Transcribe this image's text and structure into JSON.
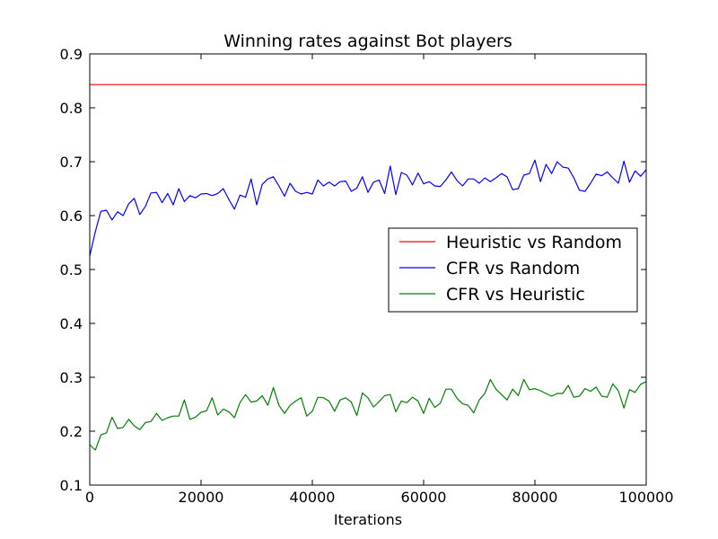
{
  "chart_data": {
    "type": "line",
    "title": "Winning rates against Bot players",
    "xlabel": "Iterations",
    "ylabel": "",
    "xlim": [
      0,
      100000
    ],
    "ylim": [
      0.1,
      0.9
    ],
    "x_ticks": [
      0,
      20000,
      40000,
      60000,
      80000,
      100000
    ],
    "x_tick_labels": [
      "0",
      "20000",
      "40000",
      "60000",
      "80000",
      "100000"
    ],
    "y_ticks": [
      0.1,
      0.2,
      0.3,
      0.4,
      0.5,
      0.6,
      0.7,
      0.8,
      0.9
    ],
    "y_tick_labels": [
      "0.1",
      "0.2",
      "0.3",
      "0.4",
      "0.5",
      "0.6",
      "0.7",
      "0.8",
      "0.9"
    ],
    "grid": false,
    "legend_position": "center-right",
    "series": [
      {
        "name": "Heuristic vs Random",
        "color": "#ff0000",
        "x": [
          0,
          100000
        ],
        "y": [
          0.843,
          0.843
        ]
      },
      {
        "name": "CFR vs Random",
        "color": "#0000ff",
        "x": [
          0,
          1000,
          2000,
          3000,
          4000,
          5000,
          6000,
          7000,
          8000,
          9000,
          10000,
          11000,
          12000,
          13000,
          14000,
          15000,
          16000,
          17000,
          18000,
          19000,
          20000,
          21000,
          22000,
          23000,
          24000,
          25000,
          26000,
          27000,
          28000,
          29000,
          30000,
          31000,
          32000,
          33000,
          34000,
          35000,
          36000,
          37000,
          38000,
          39000,
          40000,
          41000,
          42000,
          43000,
          44000,
          45000,
          46000,
          47000,
          48000,
          49000,
          50000,
          51000,
          52000,
          53000,
          54000,
          55000,
          56000,
          57000,
          58000,
          59000,
          60000,
          61000,
          62000,
          63000,
          64000,
          65000,
          66000,
          67000,
          68000,
          69000,
          70000,
          71000,
          72000,
          73000,
          74000,
          75000,
          76000,
          77000,
          78000,
          79000,
          80000,
          81000,
          82000,
          83000,
          84000,
          85000,
          86000,
          87000,
          88000,
          89000,
          90000,
          91000,
          92000,
          93000,
          94000,
          95000,
          96000,
          97000,
          98000,
          99000,
          100000
        ],
        "y": [
          0.525,
          0.57,
          0.608,
          0.61,
          0.592,
          0.607,
          0.6,
          0.622,
          0.632,
          0.602,
          0.617,
          0.642,
          0.643,
          0.624,
          0.641,
          0.62,
          0.65,
          0.626,
          0.637,
          0.633,
          0.64,
          0.641,
          0.637,
          0.641,
          0.65,
          0.63,
          0.612,
          0.638,
          0.634,
          0.668,
          0.62,
          0.658,
          0.668,
          0.672,
          0.655,
          0.636,
          0.66,
          0.645,
          0.64,
          0.643,
          0.64,
          0.666,
          0.655,
          0.662,
          0.655,
          0.663,
          0.664,
          0.645,
          0.651,
          0.672,
          0.643,
          0.662,
          0.666,
          0.641,
          0.692,
          0.639,
          0.68,
          0.675,
          0.657,
          0.679,
          0.659,
          0.663,
          0.655,
          0.654,
          0.666,
          0.681,
          0.665,
          0.655,
          0.668,
          0.668,
          0.66,
          0.67,
          0.663,
          0.67,
          0.678,
          0.672,
          0.648,
          0.65,
          0.675,
          0.678,
          0.703,
          0.663,
          0.695,
          0.678,
          0.7,
          0.69,
          0.688,
          0.67,
          0.647,
          0.645,
          0.66,
          0.677,
          0.674,
          0.681,
          0.67,
          0.66,
          0.701,
          0.662,
          0.683,
          0.673,
          0.685
        ]
      },
      {
        "name": "CFR vs Heuristic",
        "color": "#008000",
        "x": [
          0,
          1000,
          2000,
          3000,
          4000,
          5000,
          6000,
          7000,
          8000,
          9000,
          10000,
          11000,
          12000,
          13000,
          14000,
          15000,
          16000,
          17000,
          18000,
          19000,
          20000,
          21000,
          22000,
          23000,
          24000,
          25000,
          26000,
          27000,
          28000,
          29000,
          30000,
          31000,
          32000,
          33000,
          34000,
          35000,
          36000,
          37000,
          38000,
          39000,
          40000,
          41000,
          42000,
          43000,
          44000,
          45000,
          46000,
          47000,
          48000,
          49000,
          50000,
          51000,
          52000,
          53000,
          54000,
          55000,
          56000,
          57000,
          58000,
          59000,
          60000,
          61000,
          62000,
          63000,
          64000,
          65000,
          66000,
          67000,
          68000,
          69000,
          70000,
          71000,
          72000,
          73000,
          74000,
          75000,
          76000,
          77000,
          78000,
          79000,
          80000,
          81000,
          82000,
          83000,
          84000,
          85000,
          86000,
          87000,
          88000,
          89000,
          90000,
          91000,
          92000,
          93000,
          94000,
          95000,
          96000,
          97000,
          98000,
          99000,
          100000
        ],
        "y": [
          0.175,
          0.165,
          0.193,
          0.197,
          0.226,
          0.205,
          0.207,
          0.222,
          0.21,
          0.203,
          0.216,
          0.218,
          0.233,
          0.22,
          0.225,
          0.228,
          0.228,
          0.258,
          0.222,
          0.226,
          0.235,
          0.238,
          0.262,
          0.23,
          0.241,
          0.236,
          0.225,
          0.253,
          0.268,
          0.254,
          0.256,
          0.266,
          0.248,
          0.281,
          0.248,
          0.233,
          0.248,
          0.256,
          0.262,
          0.228,
          0.237,
          0.263,
          0.262,
          0.256,
          0.237,
          0.258,
          0.262,
          0.254,
          0.229,
          0.271,
          0.262,
          0.245,
          0.255,
          0.266,
          0.268,
          0.236,
          0.256,
          0.253,
          0.263,
          0.256,
          0.233,
          0.261,
          0.244,
          0.252,
          0.278,
          0.278,
          0.261,
          0.251,
          0.248,
          0.234,
          0.258,
          0.27,
          0.296,
          0.278,
          0.268,
          0.258,
          0.278,
          0.266,
          0.296,
          0.277,
          0.279,
          0.275,
          0.27,
          0.265,
          0.27,
          0.27,
          0.285,
          0.263,
          0.265,
          0.279,
          0.274,
          0.282,
          0.265,
          0.263,
          0.288,
          0.275,
          0.243,
          0.277,
          0.272,
          0.287,
          0.292
        ]
      }
    ]
  }
}
